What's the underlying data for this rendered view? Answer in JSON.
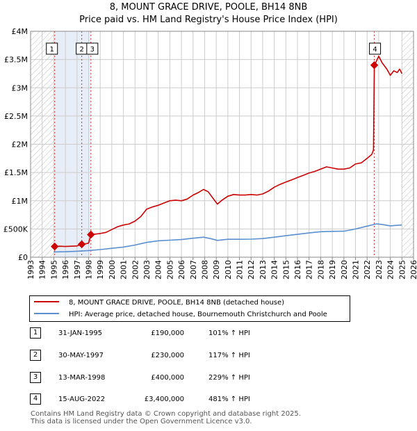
{
  "header": {
    "title": "8, MOUNT GRACE DRIVE, POOLE, BH14 8NB",
    "subtitle": "Price paid vs. HM Land Registry's House Price Index (HPI)"
  },
  "colors": {
    "property": "#cc0000",
    "hpi": "#5b8fd0",
    "grid": "#cccccc",
    "shade": "#e8eef8"
  },
  "chart_data": {
    "type": "line",
    "title": "8, MOUNT GRACE DRIVE, POOLE, BH14 8NB",
    "subtitle": "Price paid vs. HM Land Registry's House Price Index (HPI)",
    "xlim": [
      1993,
      2026
    ],
    "ylim": [
      0,
      4000000
    ],
    "x_ticks": [
      "1993",
      "1994",
      "1995",
      "1996",
      "1997",
      "1998",
      "1999",
      "2000",
      "2001",
      "2002",
      "2003",
      "2004",
      "2005",
      "2006",
      "2007",
      "2008",
      "2009",
      "2010",
      "2011",
      "2012",
      "2013",
      "2014",
      "2015",
      "2016",
      "2017",
      "2018",
      "2019",
      "2020",
      "2021",
      "2022",
      "2023",
      "2024",
      "2025",
      "2026"
    ],
    "y_ticks": [
      {
        "value": 0,
        "label": "£0"
      },
      {
        "value": 500000,
        "label": "£500K"
      },
      {
        "value": 1000000,
        "label": "£1M"
      },
      {
        "value": 1500000,
        "label": "£1.5M"
      },
      {
        "value": 2000000,
        "label": "£2M"
      },
      {
        "value": 2500000,
        "label": "£2.5M"
      },
      {
        "value": 3000000,
        "label": "£3M"
      },
      {
        "value": 3500000,
        "label": "£3.5M"
      },
      {
        "value": 4000000,
        "label": "£4M"
      }
    ],
    "hatched_ranges": [
      [
        1993,
        1995.08
      ],
      [
        2025.0,
        2026
      ]
    ],
    "series": [
      {
        "name": "8, MOUNT GRACE DRIVE, POOLE, BH14 8NB (detached house)",
        "color": "#cc0000",
        "points": [
          [
            1995.08,
            190000
          ],
          [
            1995.5,
            195000
          ],
          [
            1996,
            190000
          ],
          [
            1996.5,
            195000
          ],
          [
            1997.0,
            200000
          ],
          [
            1997.41,
            230000
          ],
          [
            1997.7,
            235000
          ],
          [
            1998.0,
            250000
          ],
          [
            1998.2,
            400000
          ],
          [
            1998.6,
            410000
          ],
          [
            1999,
            420000
          ],
          [
            1999.5,
            440000
          ],
          [
            2000,
            490000
          ],
          [
            2000.5,
            540000
          ],
          [
            2001,
            570000
          ],
          [
            2001.5,
            590000
          ],
          [
            2002,
            640000
          ],
          [
            2002.5,
            720000
          ],
          [
            2003,
            850000
          ],
          [
            2003.5,
            890000
          ],
          [
            2004,
            920000
          ],
          [
            2004.5,
            960000
          ],
          [
            2005,
            1000000
          ],
          [
            2005.5,
            1010000
          ],
          [
            2006,
            1000000
          ],
          [
            2006.5,
            1030000
          ],
          [
            2007,
            1100000
          ],
          [
            2007.5,
            1150000
          ],
          [
            2007.9,
            1200000
          ],
          [
            2008.3,
            1160000
          ],
          [
            2008.7,
            1050000
          ],
          [
            2009.1,
            940000
          ],
          [
            2009.5,
            1010000
          ],
          [
            2010,
            1080000
          ],
          [
            2010.5,
            1110000
          ],
          [
            2011,
            1100000
          ],
          [
            2011.5,
            1100000
          ],
          [
            2012,
            1110000
          ],
          [
            2012.5,
            1100000
          ],
          [
            2013,
            1120000
          ],
          [
            2013.5,
            1170000
          ],
          [
            2014,
            1240000
          ],
          [
            2014.5,
            1290000
          ],
          [
            2015,
            1330000
          ],
          [
            2015.5,
            1370000
          ],
          [
            2016,
            1410000
          ],
          [
            2016.5,
            1450000
          ],
          [
            2017,
            1490000
          ],
          [
            2017.5,
            1520000
          ],
          [
            2018,
            1560000
          ],
          [
            2018.5,
            1600000
          ],
          [
            2019,
            1580000
          ],
          [
            2019.5,
            1560000
          ],
          [
            2020,
            1560000
          ],
          [
            2020.5,
            1580000
          ],
          [
            2021,
            1650000
          ],
          [
            2021.5,
            1670000
          ],
          [
            2022,
            1750000
          ],
          [
            2022.4,
            1820000
          ],
          [
            2022.55,
            1900000
          ],
          [
            2022.62,
            3400000
          ],
          [
            2022.8,
            3470000
          ],
          [
            2023,
            3560000
          ],
          [
            2023.3,
            3440000
          ],
          [
            2023.7,
            3330000
          ],
          [
            2024,
            3220000
          ],
          [
            2024.3,
            3300000
          ],
          [
            2024.6,
            3270000
          ],
          [
            2024.8,
            3330000
          ],
          [
            2025.0,
            3250000
          ]
        ]
      },
      {
        "name": "HPI: Average price, detached house, Bournemouth Christchurch and Poole",
        "color": "#5b8fd0",
        "points": [
          [
            1995,
            94000
          ],
          [
            1996,
            97000
          ],
          [
            1997,
            106000
          ],
          [
            1998,
            118000
          ],
          [
            1999,
            135000
          ],
          [
            2000,
            158000
          ],
          [
            2001,
            180000
          ],
          [
            2002,
            215000
          ],
          [
            2003,
            262000
          ],
          [
            2004,
            290000
          ],
          [
            2005,
            302000
          ],
          [
            2006,
            312000
          ],
          [
            2007,
            336000
          ],
          [
            2007.9,
            355000
          ],
          [
            2008.5,
            330000
          ],
          [
            2009.1,
            298000
          ],
          [
            2010,
            318000
          ],
          [
            2011,
            318000
          ],
          [
            2012,
            320000
          ],
          [
            2013,
            330000
          ],
          [
            2014,
            355000
          ],
          [
            2015,
            380000
          ],
          [
            2016,
            405000
          ],
          [
            2017,
            430000
          ],
          [
            2018,
            452000
          ],
          [
            2019,
            458000
          ],
          [
            2020,
            460000
          ],
          [
            2021,
            500000
          ],
          [
            2022,
            550000
          ],
          [
            2022.8,
            590000
          ],
          [
            2023.3,
            580000
          ],
          [
            2024,
            555000
          ],
          [
            2024.6,
            565000
          ],
          [
            2025,
            570000
          ]
        ]
      }
    ],
    "sales": [
      {
        "id": "1",
        "x": 1995.08,
        "price": 190000
      },
      {
        "id": "2",
        "x": 1997.41,
        "price": 230000
      },
      {
        "id": "3",
        "x": 1998.2,
        "price": 400000
      },
      {
        "id": "4",
        "x": 2022.62,
        "price": 3400000
      }
    ]
  },
  "legend": {
    "property_label": "8, MOUNT GRACE DRIVE, POOLE, BH14 8NB (detached house)",
    "hpi_label": "HPI: Average price, detached house, Bournemouth Christchurch and Poole"
  },
  "transactions": [
    {
      "id": "1",
      "date": "31-JAN-1995",
      "price": "£190,000",
      "hpi": "101% ↑ HPI"
    },
    {
      "id": "2",
      "date": "30-MAY-1997",
      "price": "£230,000",
      "hpi": "117% ↑ HPI"
    },
    {
      "id": "3",
      "date": "13-MAR-1998",
      "price": "£400,000",
      "hpi": "229% ↑ HPI"
    },
    {
      "id": "4",
      "date": "15-AUG-2022",
      "price": "£3,400,000",
      "hpi": "481% ↑ HPI"
    }
  ],
  "footer": {
    "line1": "Contains HM Land Registry data © Crown copyright and database right 2025.",
    "line2": "This data is licensed under the Open Government Licence v3.0."
  }
}
